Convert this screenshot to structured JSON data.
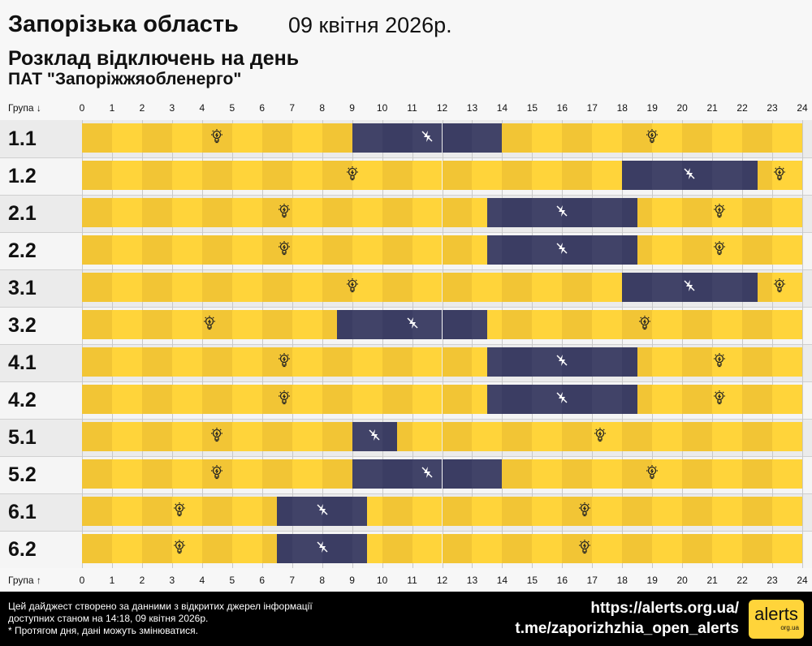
{
  "header": {
    "title": "Запорізька область",
    "date": "09 квітня 2026р.",
    "subtitle": "Розклад відключень на день",
    "company": "ПАТ \"Запоріжжяобленерго\""
  },
  "chart_data": {
    "type": "timeline",
    "xlabel_top": "Група ↓",
    "xlabel_bottom": "Група ↑",
    "xlim": [
      0,
      24
    ],
    "x_ticks": [
      0,
      1,
      2,
      3,
      4,
      5,
      6,
      7,
      8,
      9,
      10,
      11,
      12,
      13,
      14,
      15,
      16,
      17,
      18,
      19,
      20,
      21,
      22,
      23,
      24
    ],
    "groups": [
      {
        "name": "1.1",
        "outages": [
          [
            9,
            14
          ]
        ]
      },
      {
        "name": "1.2",
        "outages": [
          [
            18,
            22.5
          ]
        ]
      },
      {
        "name": "2.1",
        "outages": [
          [
            13.5,
            18.5
          ]
        ]
      },
      {
        "name": "2.2",
        "outages": [
          [
            13.5,
            18.5
          ]
        ]
      },
      {
        "name": "3.1",
        "outages": [
          [
            18,
            22.5
          ]
        ]
      },
      {
        "name": "3.2",
        "outages": [
          [
            8.5,
            13.5
          ]
        ]
      },
      {
        "name": "4.1",
        "outages": [
          [
            13.5,
            18.5
          ]
        ]
      },
      {
        "name": "4.2",
        "outages": [
          [
            13.5,
            18.5
          ]
        ]
      },
      {
        "name": "5.1",
        "outages": [
          [
            9,
            10.5
          ]
        ]
      },
      {
        "name": "5.2",
        "outages": [
          [
            9,
            14
          ]
        ]
      },
      {
        "name": "6.1",
        "outages": [
          [
            6.5,
            9.5
          ]
        ]
      },
      {
        "name": "6.2",
        "outages": [
          [
            6.5,
            9.5
          ]
        ]
      }
    ],
    "colors": {
      "power_on": "#ffd43a",
      "power_on_alt": "#f2c535",
      "power_off": "#414368",
      "power_off_alt": "#3b3d63"
    },
    "icons": {
      "power_on": "lightbulb-icon",
      "power_off": "no-power-icon"
    }
  },
  "footer": {
    "line1": "Цей дайджест створено за данними з відкритих джерел інформації",
    "line2": "доступних станом на 14:18, 09 квітня 2026р.",
    "line3": "* Протягом дня, дані можуть змінюватися.",
    "url": "https://alerts.org.ua/",
    "telegram": "t.me/zaporizhzhia_open_alerts",
    "logo": "alerts org.ua"
  }
}
